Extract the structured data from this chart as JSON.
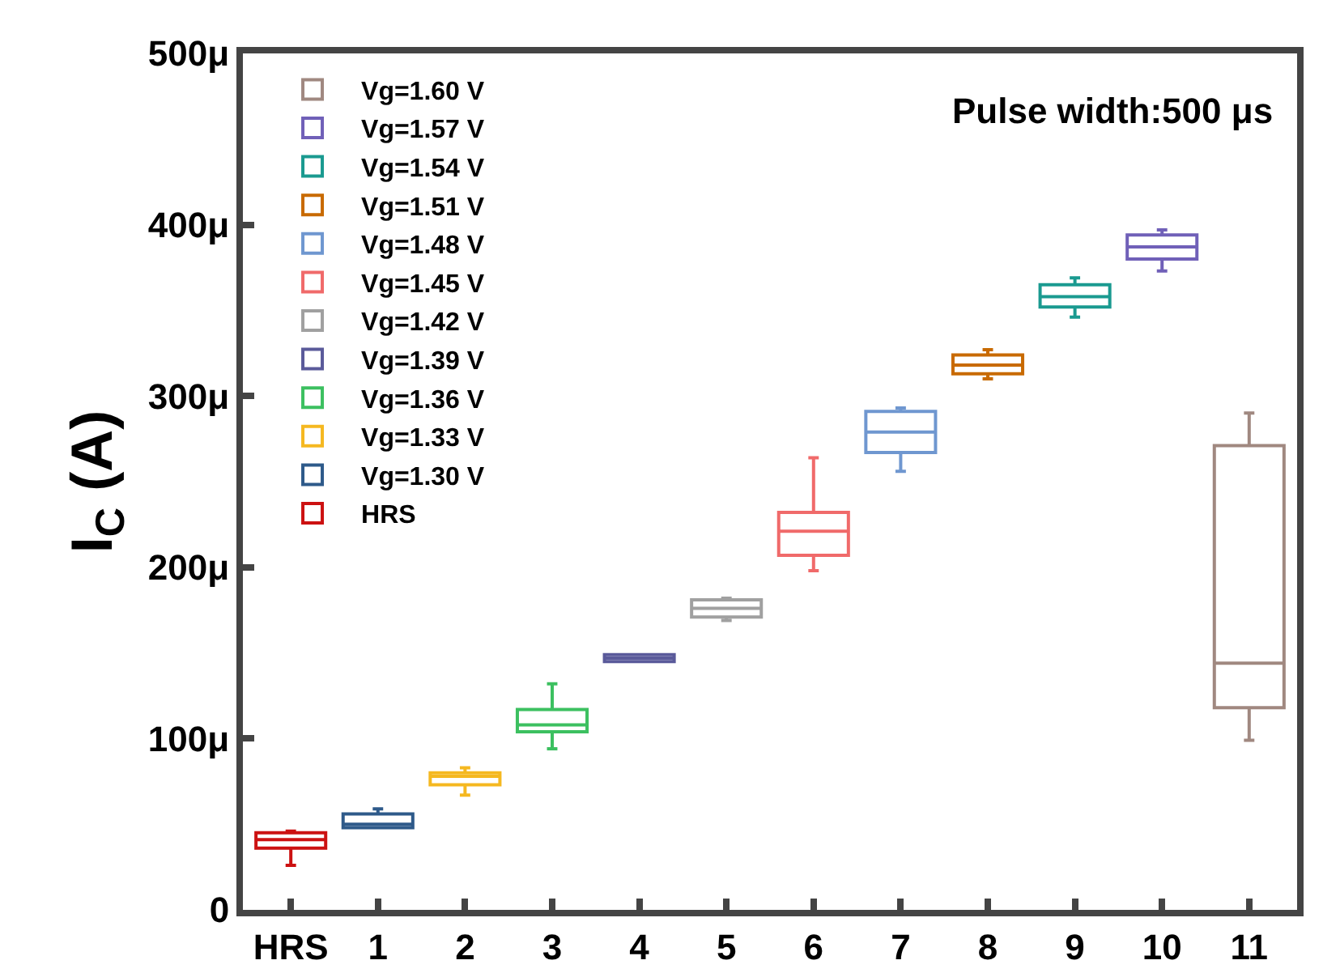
{
  "chart_data": {
    "type": "box",
    "ylabel": "I$_{C}$ (A)",
    "categories": [
      "HRS",
      "1",
      "2",
      "3",
      "4",
      "5",
      "6",
      "7",
      "8",
      "9",
      "10",
      "11"
    ],
    "ylim": [
      0,
      500
    ],
    "yticks": [
      0,
      {
        "value": 100,
        "label": "100μ"
      },
      {
        "value": 200,
        "label": "200μ"
      },
      {
        "value": 300,
        "label": "300μ"
      },
      {
        "value": 400,
        "label": "400μ"
      },
      {
        "value": 500,
        "label": "500μ"
      }
    ],
    "grid": false,
    "legend": "top left",
    "annotations": [
      "Pulse width:500 μs"
    ],
    "series": [
      {
        "name": "HRS",
        "color": "#cc1111",
        "x": [
          "HRS"
        ],
        "boxes": [
          {
            "low": 26,
            "q1": 36,
            "median": 41,
            "q3": 45,
            "high": 46
          }
        ]
      },
      {
        "name": "Vg=1.30 V",
        "color": "#2e5a8a",
        "x": [
          "1"
        ],
        "boxes": [
          {
            "low": 48,
            "q1": 48,
            "median": 50,
            "q3": 56,
            "high": 59
          }
        ]
      },
      {
        "name": "Vg=1.33 V",
        "color": "#f5b820",
        "x": [
          "2"
        ],
        "boxes": [
          {
            "low": 67,
            "q1": 73,
            "median": 78,
            "q3": 80,
            "high": 83
          }
        ]
      },
      {
        "name": "Vg=1.36 V",
        "color": "#3cc060",
        "x": [
          "3"
        ],
        "boxes": [
          {
            "low": 94,
            "q1": 104,
            "median": 108,
            "q3": 117,
            "high": 132
          }
        ]
      },
      {
        "name": "Vg=1.39 V",
        "color": "#5a5a9a",
        "x": [
          "4"
        ],
        "boxes": [
          {
            "low": 145,
            "q1": 145,
            "median": 147,
            "q3": 149,
            "high": 149
          }
        ]
      },
      {
        "name": "Vg=1.42 V",
        "color": "#a0a0a0",
        "x": [
          "5"
        ],
        "boxes": [
          {
            "low": 169,
            "q1": 171,
            "median": 176,
            "q3": 181,
            "high": 182
          }
        ]
      },
      {
        "name": "Vg=1.45 V",
        "color": "#f06a6a",
        "x": [
          "6"
        ],
        "boxes": [
          {
            "low": 198,
            "q1": 207,
            "median": 221,
            "q3": 232,
            "high": 264
          }
        ]
      },
      {
        "name": "Vg=1.48 V",
        "color": "#6f97d0",
        "x": [
          "7"
        ],
        "boxes": [
          {
            "low": 256,
            "q1": 267,
            "median": 279,
            "q3": 291,
            "high": 293
          }
        ]
      },
      {
        "name": "Vg=1.51 V",
        "color": "#c86a00",
        "x": [
          "8"
        ],
        "boxes": [
          {
            "low": 310,
            "q1": 313,
            "median": 318,
            "q3": 324,
            "high": 327
          }
        ]
      },
      {
        "name": "Vg=1.54 V",
        "color": "#1a9a90",
        "x": [
          "9"
        ],
        "boxes": [
          {
            "low": 346,
            "q1": 352,
            "median": 358,
            "q3": 365,
            "high": 369
          }
        ]
      },
      {
        "name": "Vg=1.57 V",
        "color": "#7060b8",
        "x": [
          "10"
        ],
        "boxes": [
          {
            "low": 373,
            "q1": 380,
            "median": 387,
            "q3": 394,
            "high": 397
          }
        ]
      },
      {
        "name": "Vg=1.60 V",
        "color": "#a08880",
        "x": [
          "11"
        ],
        "boxes": [
          {
            "low": 99,
            "q1": 118,
            "median": 144,
            "q3": 271,
            "high": 290
          }
        ]
      }
    ]
  }
}
